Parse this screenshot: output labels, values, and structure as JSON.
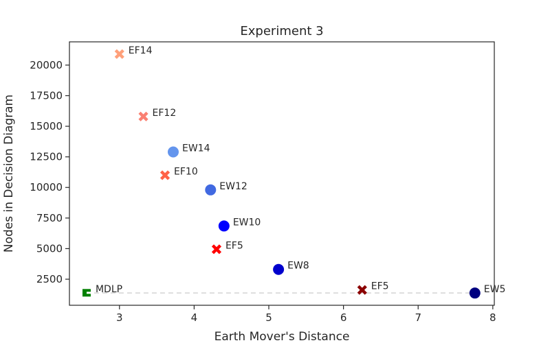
{
  "chart_data": {
    "type": "scatter",
    "title": "Experiment 3",
    "xlabel": "Earth Mover's Distance",
    "ylabel": "Nodes in Decision Diagram",
    "xlim": [
      2.33,
      8.02
    ],
    "ylim": [
      370,
      21900
    ],
    "xticks": [
      3,
      4,
      5,
      6,
      7,
      8
    ],
    "yticks": [
      2500,
      5000,
      7500,
      10000,
      12500,
      15000,
      17500,
      20000
    ],
    "grid": false,
    "legend": "none",
    "reference_line": {
      "from": [
        2.55,
        1370
      ],
      "to": [
        7.77,
        1370
      ],
      "style": "dashed",
      "color": "#dddddd"
    },
    "points": [
      {
        "label": "EF14",
        "x": 3.0,
        "y": 20900,
        "marker": "x",
        "color": "#ffa07a"
      },
      {
        "label": "EF12",
        "x": 3.32,
        "y": 15800,
        "marker": "x",
        "color": "#fa8072"
      },
      {
        "label": "EW14",
        "x": 3.72,
        "y": 12900,
        "marker": "circle",
        "color": "#6495ed"
      },
      {
        "label": "EF10",
        "x": 3.61,
        "y": 11000,
        "marker": "x",
        "color": "#ff6347"
      },
      {
        "label": "EW12",
        "x": 4.22,
        "y": 9800,
        "marker": "circle",
        "color": "#4169e1"
      },
      {
        "label": "EW10",
        "x": 4.4,
        "y": 6850,
        "marker": "circle",
        "color": "#0000ff"
      },
      {
        "label": "EF5",
        "x": 4.3,
        "y": 4950,
        "marker": "x",
        "color": "#ff0000"
      },
      {
        "label": "EW8",
        "x": 5.13,
        "y": 3300,
        "marker": "circle",
        "color": "#0000cd"
      },
      {
        "label": "EF5",
        "x": 6.25,
        "y": 1620,
        "marker": "x",
        "color": "#8b0000"
      },
      {
        "label": "EW5",
        "x": 7.76,
        "y": 1370,
        "marker": "circle",
        "color": "#000080"
      },
      {
        "label": "MDLP",
        "x": 2.56,
        "y": 1390,
        "marker": "tick",
        "color": "#008000"
      }
    ]
  }
}
